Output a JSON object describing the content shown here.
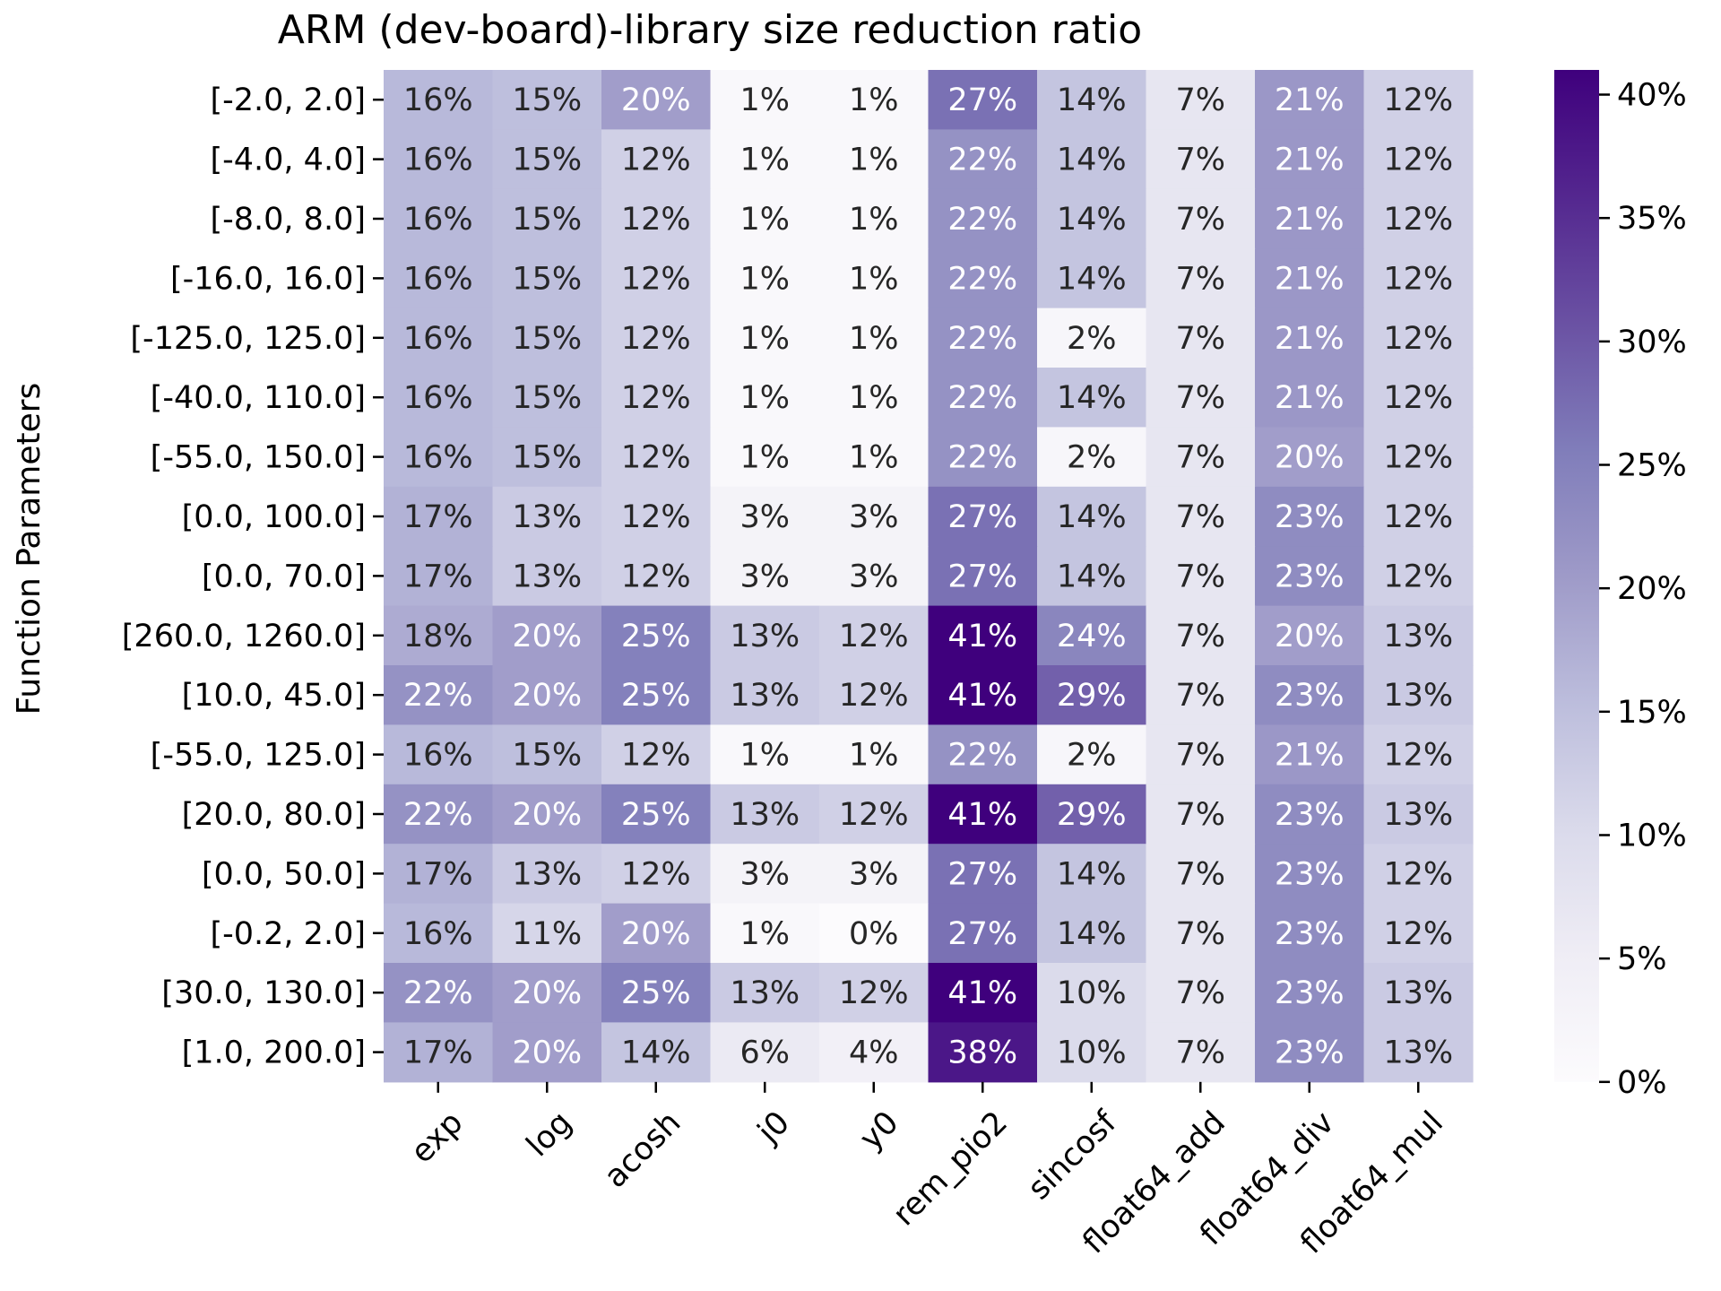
{
  "chart_data": {
    "type": "heatmap",
    "title": "ARM (dev-board)-library size reduction ratio",
    "xlabel": "",
    "ylabel": "Function Parameters",
    "columns": [
      "exp",
      "log",
      "acosh",
      "j0",
      "y0",
      "rem_pio2",
      "sincosf",
      "float64_add",
      "float64_div",
      "float64_mul"
    ],
    "rows": [
      "[-2.0, 2.0]",
      "[-4.0, 4.0]",
      "[-8.0, 8.0]",
      "[-16.0, 16.0]",
      "[-125.0, 125.0]",
      "[-40.0, 110.0]",
      "[-55.0, 150.0]",
      "[0.0, 100.0]",
      "[0.0, 70.0]",
      "[260.0, 1260.0]",
      "[10.0, 45.0]",
      "[-55.0, 125.0]",
      "[20.0, 80.0]",
      "[0.0, 50.0]",
      "[-0.2, 2.0]",
      "[30.0, 130.0]",
      "[1.0, 200.0]"
    ],
    "values": [
      [
        16,
        15,
        20,
        1,
        1,
        27,
        14,
        7,
        21,
        12
      ],
      [
        16,
        15,
        12,
        1,
        1,
        22,
        14,
        7,
        21,
        12
      ],
      [
        16,
        15,
        12,
        1,
        1,
        22,
        14,
        7,
        21,
        12
      ],
      [
        16,
        15,
        12,
        1,
        1,
        22,
        14,
        7,
        21,
        12
      ],
      [
        16,
        15,
        12,
        1,
        1,
        22,
        2,
        7,
        21,
        12
      ],
      [
        16,
        15,
        12,
        1,
        1,
        22,
        14,
        7,
        21,
        12
      ],
      [
        16,
        15,
        12,
        1,
        1,
        22,
        2,
        7,
        20,
        12
      ],
      [
        17,
        13,
        12,
        3,
        3,
        27,
        14,
        7,
        23,
        12
      ],
      [
        17,
        13,
        12,
        3,
        3,
        27,
        14,
        7,
        23,
        12
      ],
      [
        18,
        20,
        25,
        13,
        12,
        41,
        24,
        7,
        20,
        13
      ],
      [
        22,
        20,
        25,
        13,
        12,
        41,
        29,
        7,
        23,
        13
      ],
      [
        16,
        15,
        12,
        1,
        1,
        22,
        2,
        7,
        21,
        12
      ],
      [
        22,
        20,
        25,
        13,
        12,
        41,
        29,
        7,
        23,
        13
      ],
      [
        17,
        13,
        12,
        3,
        3,
        27,
        14,
        7,
        23,
        12
      ],
      [
        16,
        11,
        20,
        1,
        0,
        27,
        14,
        7,
        23,
        12
      ],
      [
        22,
        20,
        25,
        13,
        12,
        41,
        10,
        7,
        23,
        13
      ],
      [
        17,
        20,
        14,
        6,
        4,
        38,
        10,
        7,
        23,
        13
      ]
    ],
    "value_suffix": "%",
    "colormap": "Purples",
    "color_range": [
      0,
      41
    ],
    "colorbar": {
      "ticks": [
        0,
        5,
        10,
        15,
        20,
        25,
        30,
        35,
        40
      ],
      "tick_labels": [
        "0%",
        "5%",
        "10%",
        "15%",
        "20%",
        "25%",
        "30%",
        "35%",
        "40%"
      ]
    },
    "grid": false,
    "legend": "colorbar-right"
  }
}
